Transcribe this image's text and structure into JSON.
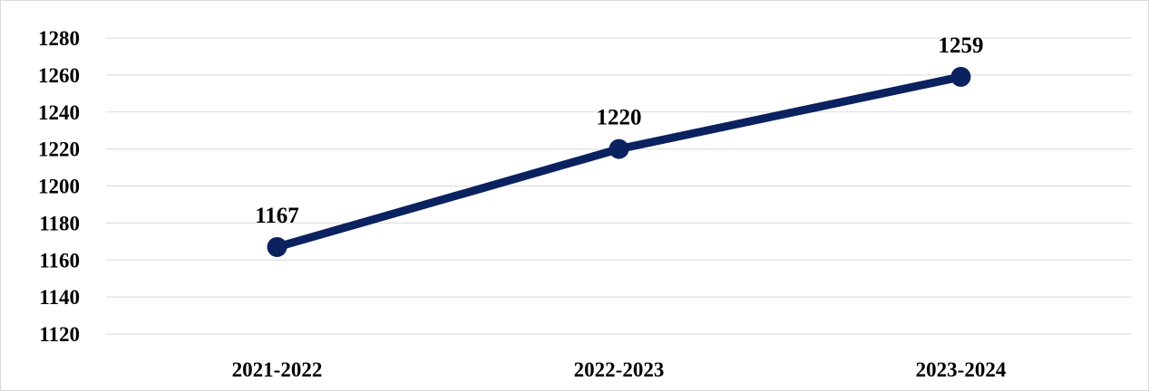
{
  "chart_data": {
    "type": "line",
    "categories": [
      "2021-2022",
      "2022-2023",
      "2023-2024"
    ],
    "series": [
      {
        "values": [
          1167,
          1220,
          1259
        ]
      }
    ],
    "data_labels": [
      "1167",
      "1220",
      "1259"
    ],
    "y_ticks": [
      "1120",
      "1140",
      "1160",
      "1180",
      "1200",
      "1220",
      "1240",
      "1260",
      "1280"
    ],
    "ylim": [
      1120,
      1280
    ],
    "y_step": 20,
    "title": "",
    "xlabel": "",
    "ylabel": "",
    "grid": true,
    "legend": "none",
    "colors": {
      "line": "#0b2260",
      "grid": "#d9d9d9"
    }
  }
}
